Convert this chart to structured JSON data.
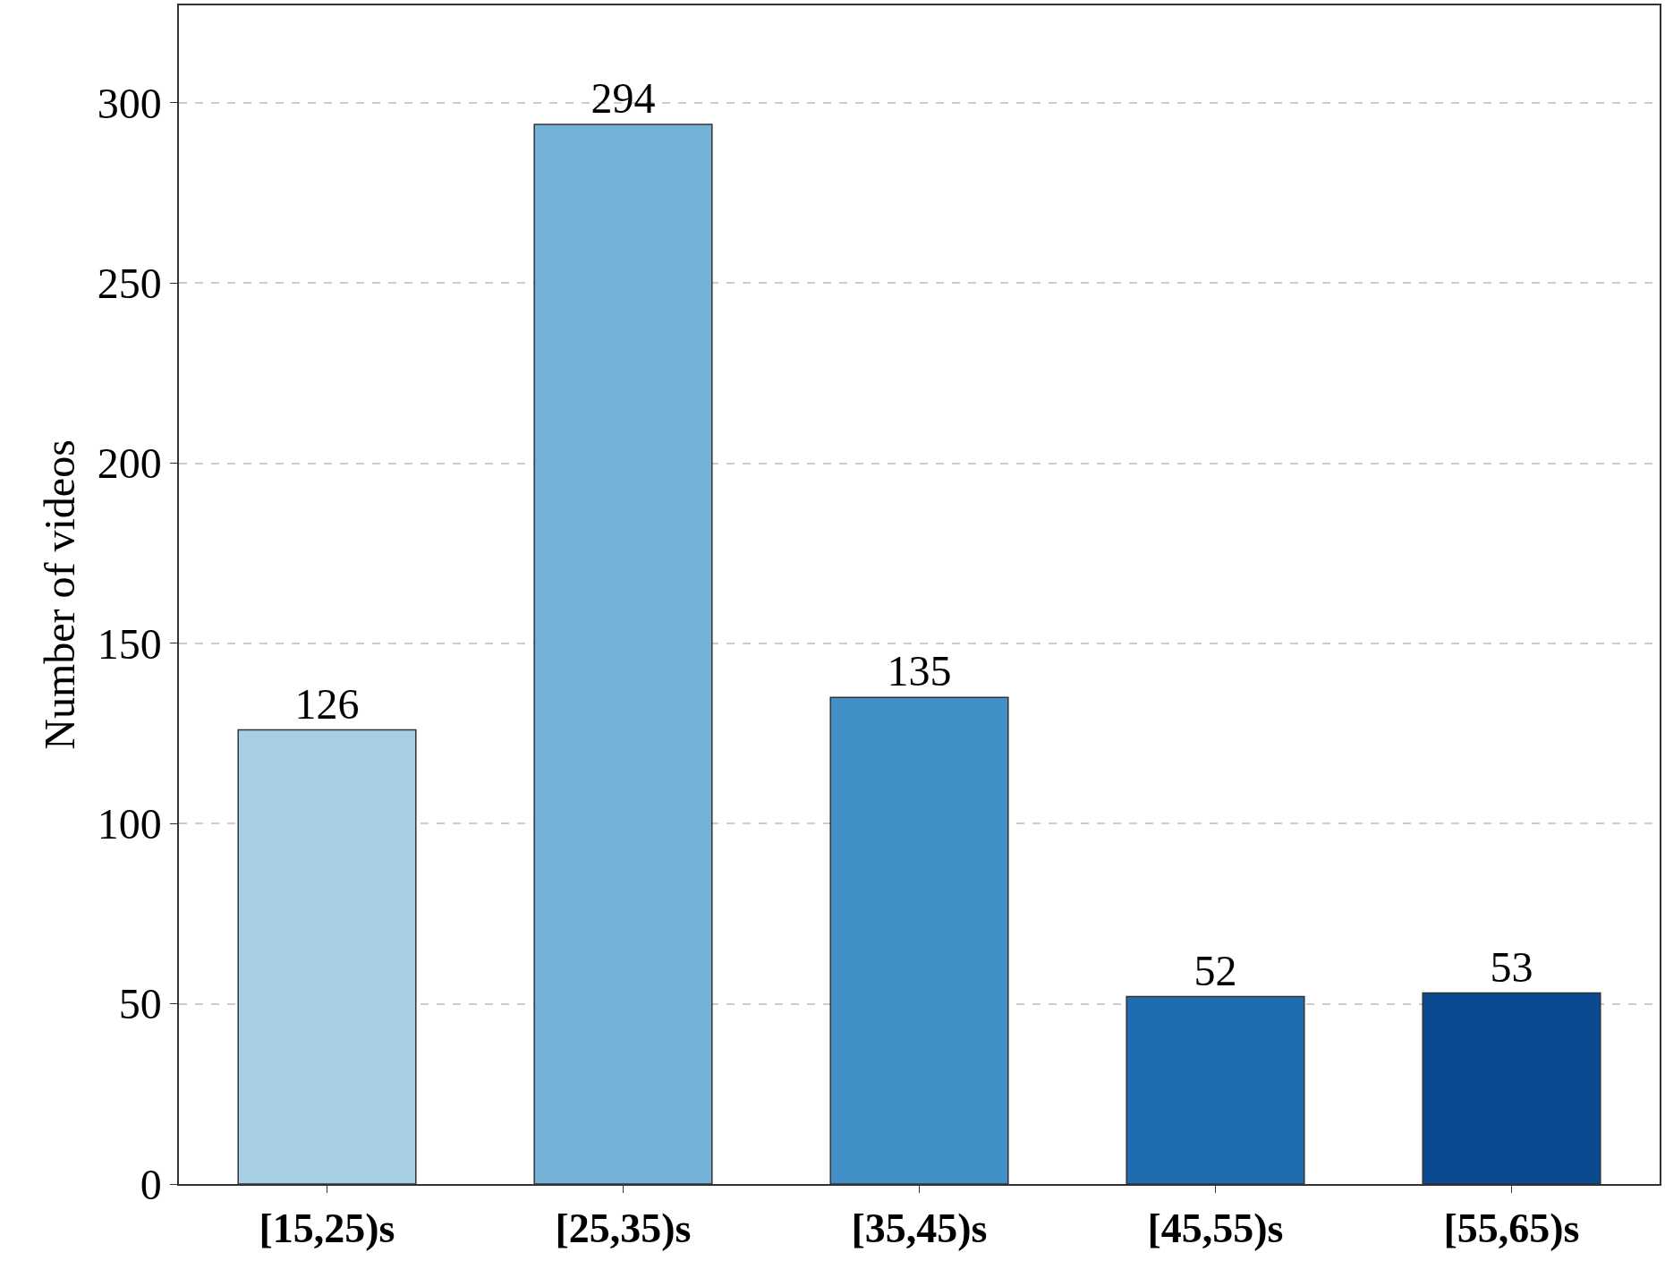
{
  "chart_data": {
    "type": "bar",
    "ylabel": "Number of videos",
    "categories": [
      "[15,25)s",
      "[25,35)s",
      "[35,45)s",
      "[45,55)s",
      "[55,65)s"
    ],
    "values": [
      126,
      294,
      135,
      52,
      53
    ],
    "colors": [
      "#a6cee4",
      "#74b1d7",
      "#4190c8",
      "#1f6cb0",
      "#0a4a90"
    ],
    "ylim": [
      0,
      327
    ],
    "yticks": [
      0,
      50,
      100,
      150,
      200,
      250,
      300
    ],
    "grid": "y",
    "data_labels": true,
    "legend": false
  }
}
